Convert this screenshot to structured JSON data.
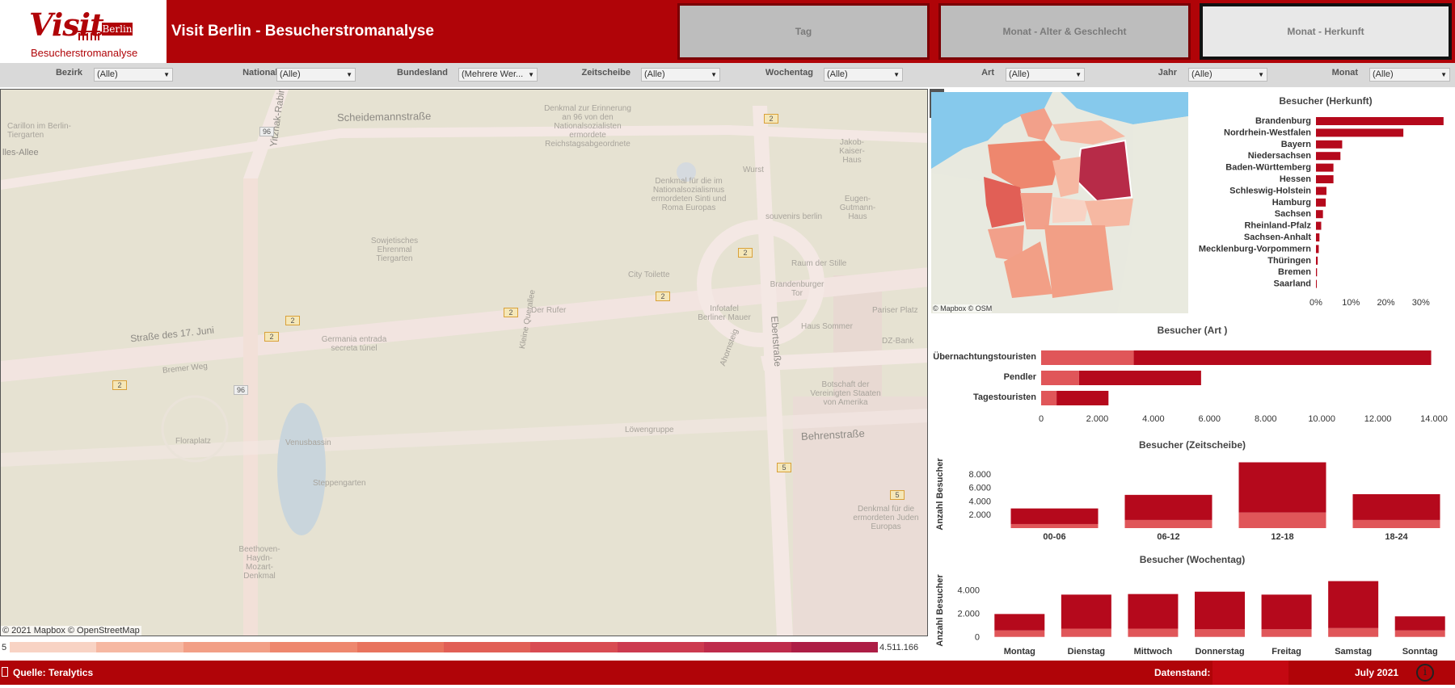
{
  "app": {
    "logo_visit": "Visit",
    "logo_berlin": "Berlin",
    "logo_sub": "Besucherstromanalyse",
    "title": "Visit Berlin - Besucherstromanalyse"
  },
  "tabs": [
    {
      "label": "Tag",
      "active": false
    },
    {
      "label": "Monat - Alter & Geschlecht",
      "active": false
    },
    {
      "label": "Monat - Herkunft",
      "active": true
    }
  ],
  "filters": [
    {
      "label": "Bezirk",
      "value": "(Alle)"
    },
    {
      "label": "Nationalität",
      "value": "(Alle)"
    },
    {
      "label": "Bundesland",
      "value": "(Mehrere Wer..."
    },
    {
      "label": "Zeitscheibe",
      "value": "(Alle)"
    },
    {
      "label": "Wochentag",
      "value": "(Alle)"
    },
    {
      "label": "Art",
      "value": "(Alle)"
    },
    {
      "label": "Jahr",
      "value": "(Alle)"
    },
    {
      "label": "Monat",
      "value": "(Alle)"
    }
  ],
  "map": {
    "streets": [
      "Scheidemannstraße",
      "Straße des 17. Juni",
      "Yitzhak-Rabin-Straße",
      "Behrenstraße",
      "Ebertstraße",
      "Bremer Weg",
      "Kleine Querallee",
      "Ahornsteig"
    ],
    "pois": [
      "Carillon im Berlin-Tiergarten",
      "lles-Allee",
      "Denkmal zur Erinnerung an 96 von den Nationalsozialisten ermordete Reichstagsabgeordnete",
      "Jakob-Kaiser-Haus",
      "Wurst",
      "Denkmal für die im Nationalsozialismus ermordeten Sinti und Roma Europas",
      "Eugen-Gutmann-Haus",
      "souvenirs berlin",
      "Sowjetisches Ehrenmal Tiergarten",
      "City Toilette",
      "Raum der Stille",
      "Brandenburger Tor",
      "Der Rufer",
      "Infotafel Berliner Mauer",
      "Pariser Platz",
      "Haus Sommer",
      "Germania entrada secreta túnel",
      "DZ-Bank",
      "Botschaft der Vereinigten Staaten von Amerika",
      "Löwengruppe",
      "Floraplatz",
      "Venusbassin",
      "Steppengarten",
      "Denkmal für die ermordeten Juden Europas",
      "Beethoven-Haydn-Mozart-Denkmal"
    ],
    "route_numbers": [
      "2",
      "96",
      "5"
    ],
    "attribution": "© 2021 Mapbox © OpenStreetMap",
    "legend_min": "5",
    "legend_max": "4.511.166",
    "legend_colors": [
      "#f8d3c4",
      "#f6b8a2",
      "#f29f86",
      "#ee876e",
      "#e8735e",
      "#e15f56",
      "#d84b52",
      "#cc3a4f",
      "#be2b4b",
      "#ad1d45"
    ]
  },
  "mini_map": {
    "attribution": "© Mapbox © OSM",
    "highlight_color": "#b72b48"
  },
  "herkunft": {
    "title": "Besucher (Herkunft)"
  },
  "art": {
    "title": "Besucher (Art )"
  },
  "zeitscheibe": {
    "title": "Besucher (Zeitscheibe)",
    "ylabel": "Anzahl Besucher"
  },
  "wochentag": {
    "title": "Besucher (Wochentag)",
    "ylabel": "Anzahl Besucher"
  },
  "footer": {
    "source": "Quelle: Teralytics",
    "datenstand_label": "Datenstand:",
    "datenstand_value": "July 2021",
    "info_icon": "i"
  },
  "colors": {
    "brand_red": "#b00408",
    "dark_bar": "#b5091c",
    "light_bar": "#e05659"
  },
  "chart_data": [
    {
      "type": "bar",
      "orientation": "horizontal",
      "title": "Besucher (Herkunft)",
      "categories": [
        "Brandenburg",
        "Nordrhein-Westfalen",
        "Bayern",
        "Niedersachsen",
        "Baden-Württemberg",
        "Hessen",
        "Schleswig-Holstein",
        "Hamburg",
        "Sachsen",
        "Rheinland-Pfalz",
        "Sachsen-Anhalt",
        "Mecklenburg-Vorpommern",
        "Thüringen",
        "Bremen",
        "Saarland"
      ],
      "values": [
        36.5,
        25,
        7.5,
        7,
        5,
        5,
        3,
        2.8,
        2,
        1.5,
        1,
        0.8,
        0.5,
        0.3,
        0.2
      ],
      "xlim": [
        0,
        37
      ],
      "xticks": [
        0,
        10,
        20,
        30
      ],
      "xtick_labels": [
        "0%",
        "10%",
        "20%",
        "30%"
      ]
    },
    {
      "type": "bar",
      "orientation": "horizontal",
      "stacked": true,
      "title": "Besucher (Art )",
      "categories": [
        "Übernachtungstouristen",
        "Pendler",
        "Tagestouristen"
      ],
      "series": [
        {
          "values": [
            3300,
            1350,
            550
          ]
        },
        {
          "values": [
            10600,
            4350,
            1850
          ]
        }
      ],
      "xlim": [
        0,
        14000
      ],
      "xticks": [
        0,
        2000,
        4000,
        6000,
        8000,
        10000,
        12000,
        14000
      ],
      "xtick_labels": [
        "0",
        "2.000",
        "4.000",
        "6.000",
        "8.000",
        "10.000",
        "12.000",
        "14.000"
      ]
    },
    {
      "type": "bar",
      "stacked": true,
      "title": "Besucher (Zeitscheibe)",
      "ylabel": "Anzahl Besucher",
      "categories": [
        "00-06",
        "06-12",
        "12-18",
        "18-24"
      ],
      "series": [
        {
          "values": [
            600,
            1200,
            2300,
            1200
          ]
        },
        {
          "values": [
            2300,
            3700,
            7400,
            3800
          ]
        }
      ],
      "ylim": [
        0,
        10000
      ],
      "yticks": [
        2000,
        4000,
        6000,
        8000
      ],
      "ytick_labels": [
        "2.000",
        "4.000",
        "6.000",
        "8.000"
      ]
    },
    {
      "type": "bar",
      "stacked": true,
      "title": "Besucher (Wochentag)",
      "ylabel": "Anzahl Besucher",
      "categories": [
        "Montag",
        "Dienstag",
        "Mittwoch",
        "Donnerstag",
        "Freitag",
        "Samstag",
        "Sonntag"
      ],
      "series": [
        {
          "values": [
            550,
            700,
            700,
            650,
            650,
            750,
            550
          ]
        },
        {
          "values": [
            1400,
            2900,
            2950,
            3200,
            2950,
            4000,
            1200
          ]
        }
      ],
      "ylim": [
        -500,
        5000
      ],
      "yticks": [
        0,
        2000,
        4000
      ],
      "ytick_labels": [
        "0",
        "2.000",
        "4.000"
      ]
    }
  ]
}
